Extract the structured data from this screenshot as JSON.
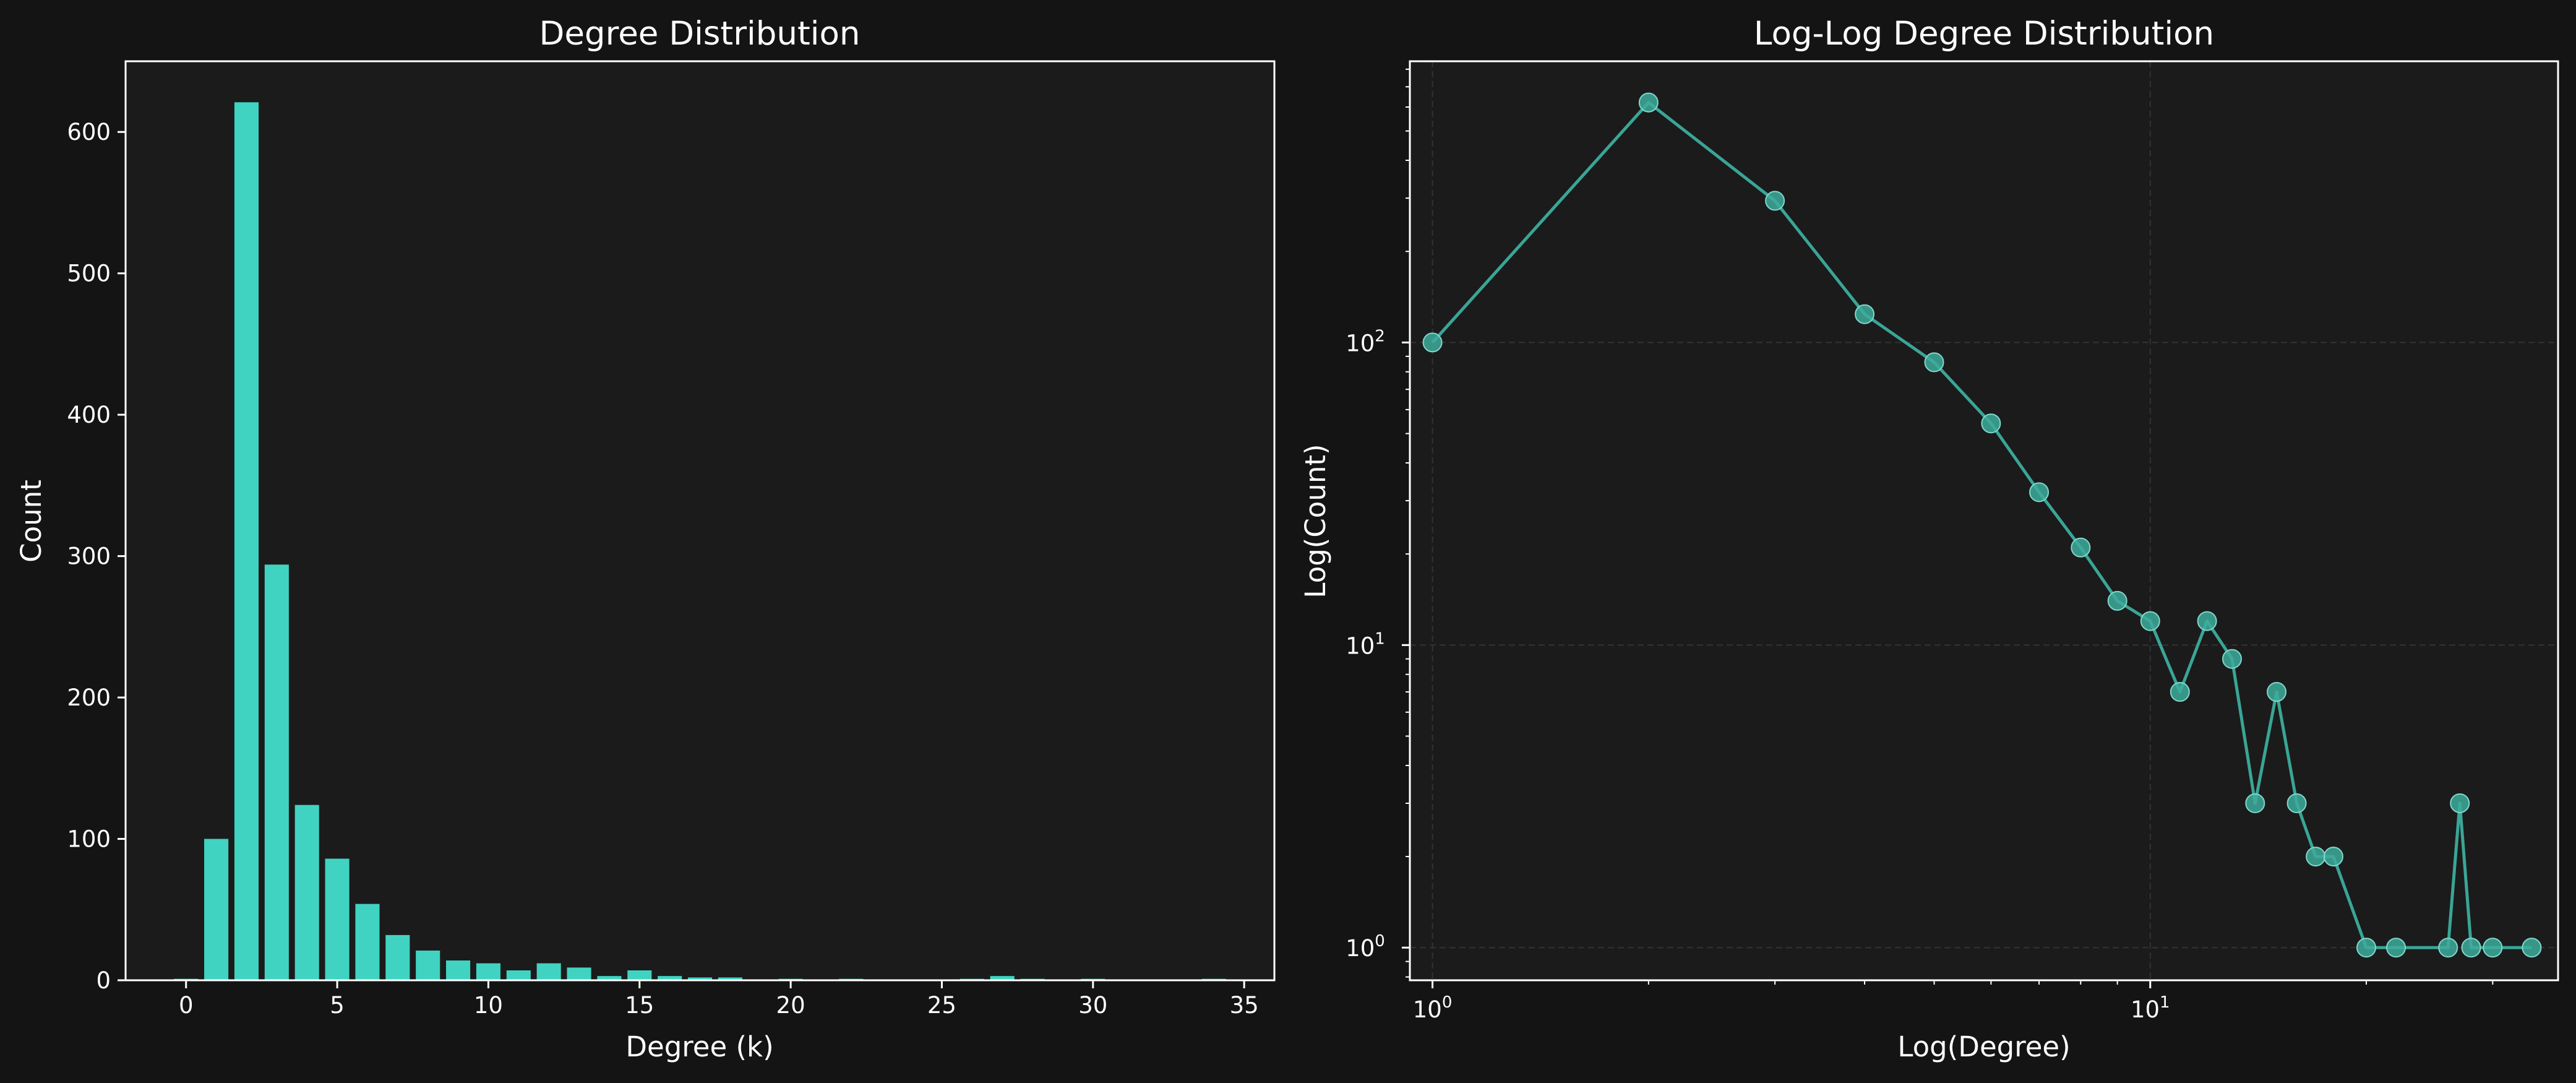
{
  "colors": {
    "background": "#141414",
    "plot_background": "#1b1b1b",
    "bar": "#40d3c2",
    "line": "#3aa596",
    "marker": "#3dab9c",
    "text": "#ffffff",
    "grid": "#333333"
  },
  "chart_data": [
    {
      "type": "bar",
      "title": "Degree Distribution",
      "xlabel": "Degree (k)",
      "ylabel": "Count",
      "xlim": [
        -2,
        36
      ],
      "ylim": [
        0,
        650
      ],
      "grid": false,
      "x_ticks": [
        0,
        5,
        10,
        15,
        20,
        25,
        30,
        35
      ],
      "y_ticks": [
        0,
        100,
        200,
        300,
        400,
        500,
        600
      ],
      "x": [
        0,
        1,
        2,
        3,
        4,
        5,
        6,
        7,
        8,
        9,
        10,
        11,
        12,
        13,
        14,
        15,
        16,
        17,
        18,
        20,
        22,
        26,
        27,
        28,
        30,
        34
      ],
      "values": [
        1,
        100,
        621,
        294,
        124,
        86,
        54,
        32,
        21,
        14,
        12,
        7,
        12,
        9,
        3,
        7,
        3,
        2,
        2,
        1,
        1,
        1,
        3,
        1,
        1,
        1
      ]
    },
    {
      "type": "line",
      "title": "Log-Log Degree Distribution",
      "xlabel": "Log(Degree)",
      "ylabel": "Log(Count)",
      "xscale": "log",
      "yscale": "log",
      "xlim": [
        0.93,
        37
      ],
      "ylim": [
        0.78,
        850
      ],
      "grid": true,
      "x_ticks": [
        {
          "value": 1,
          "base": "10",
          "exp": "0"
        },
        {
          "value": 10,
          "base": "10",
          "exp": "1"
        }
      ],
      "y_ticks": [
        {
          "value": 1,
          "base": "10",
          "exp": "0"
        },
        {
          "value": 10,
          "base": "10",
          "exp": "1"
        },
        {
          "value": 100,
          "base": "10",
          "exp": "2"
        }
      ],
      "x": [
        1,
        2,
        3,
        4,
        5,
        6,
        7,
        8,
        9,
        10,
        11,
        12,
        13,
        14,
        15,
        16,
        17,
        18,
        20,
        22,
        26,
        27,
        28,
        30,
        34
      ],
      "y": [
        100,
        621,
        294,
        124,
        86,
        54,
        32,
        21,
        14,
        12,
        7,
        12,
        9,
        3,
        7,
        3,
        2,
        2,
        1,
        1,
        1,
        3,
        1,
        1,
        1
      ]
    }
  ]
}
